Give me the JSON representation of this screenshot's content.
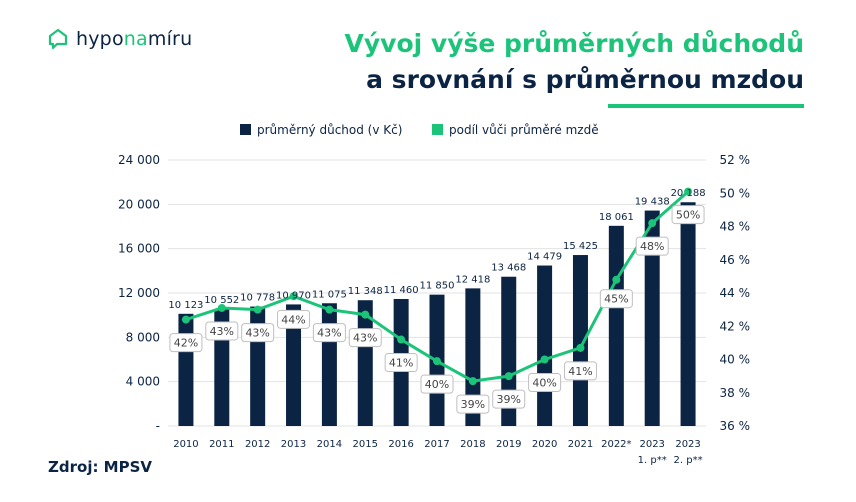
{
  "logo": {
    "part1": "hypo",
    "part2": "na",
    "part3": "míru"
  },
  "title": {
    "line1": "Vývoj výše průměrných důchodů",
    "line2": "a srovnání s průměrnou mzdou"
  },
  "source": "Zdroj: MPSV",
  "colors": {
    "bar": "#0c2444",
    "line": "#1cc47a",
    "accent": "#1cc47a"
  },
  "chart_data": {
    "type": "bar",
    "categories": [
      "2010",
      "2011",
      "2012",
      "2013",
      "2014",
      "2015",
      "2016",
      "2017",
      "2018",
      "2019",
      "2020",
      "2021",
      "2022*",
      "2023",
      "2023"
    ],
    "category_sublabels": [
      "",
      "",
      "",
      "",
      "",
      "",
      "",
      "",
      "",
      "",
      "",
      "",
      "",
      "1. p**",
      "2. p**"
    ],
    "series": [
      {
        "name": "průměrný důchod (v Kč)",
        "type": "bar",
        "axis": "left",
        "values": [
          10123,
          10552,
          10778,
          10970,
          11075,
          11348,
          11460,
          11850,
          12418,
          13468,
          14479,
          15425,
          18061,
          19438,
          20188
        ],
        "labels": [
          "10 123",
          "10 552",
          "10 778",
          "10 970",
          "11 075",
          "11 348",
          "11 460",
          "11 850",
          "12 418",
          "13 468",
          "14 479",
          "15 425",
          "18 061",
          "19 438",
          "20 188"
        ]
      },
      {
        "name": "podíl vůči průměré mzdě",
        "type": "line",
        "axis": "right",
        "values": [
          42.4,
          43.1,
          43.0,
          43.8,
          43.0,
          42.7,
          41.2,
          39.9,
          38.7,
          39.0,
          40.0,
          40.7,
          44.8,
          48.2,
          50.1
        ],
        "labels": [
          "42%",
          "43%",
          "43%",
          "44%",
          "43%",
          "43%",
          "41%",
          "40%",
          "39%",
          "39%",
          "40%",
          "41%",
          "45%",
          "48%",
          "50%"
        ]
      }
    ],
    "y_left": {
      "min": 0,
      "max": 24000,
      "ticks": [
        "-",
        "4 000",
        "8 000",
        "12 000",
        "16 000",
        "20 000",
        "24 000"
      ]
    },
    "y_right": {
      "min": 36,
      "max": 52,
      "ticks": [
        "36 %",
        "38 %",
        "40 %",
        "42 %",
        "44 %",
        "46 %",
        "48 %",
        "50 %",
        "52 %"
      ]
    },
    "legend_position": "top",
    "grid": true
  }
}
